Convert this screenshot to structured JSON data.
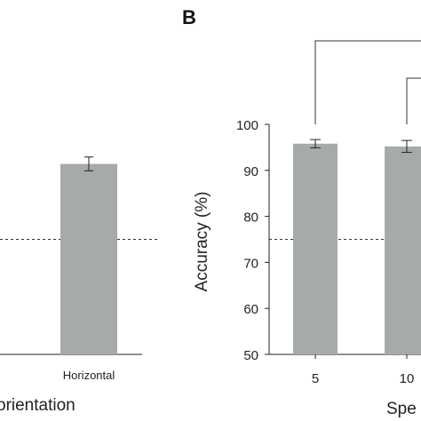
{
  "colors": {
    "bar": "#a7aba8",
    "axis": "#222222",
    "reference_line": "#333333"
  },
  "chart_data": [
    {
      "type": "bar",
      "categories": [
        "Horizontal"
      ],
      "values": [
        91.4
      ],
      "errors": [
        1.5
      ],
      "xlabel": "orientation",
      "reference_line": 75,
      "ylim": [
        50,
        100
      ]
    },
    {
      "type": "bar",
      "panel_label": "B",
      "categories": [
        "5",
        "10"
      ],
      "values": [
        95.8,
        95.2
      ],
      "errors": [
        0.9,
        1.3
      ],
      "xlabel": "Spe",
      "ylabel": "Accuracy (%)",
      "yticks": [
        "100",
        "90",
        "80",
        "70",
        "60",
        "50"
      ],
      "ylim": [
        50,
        100
      ],
      "reference_line": 75,
      "significance_brackets": true
    }
  ]
}
